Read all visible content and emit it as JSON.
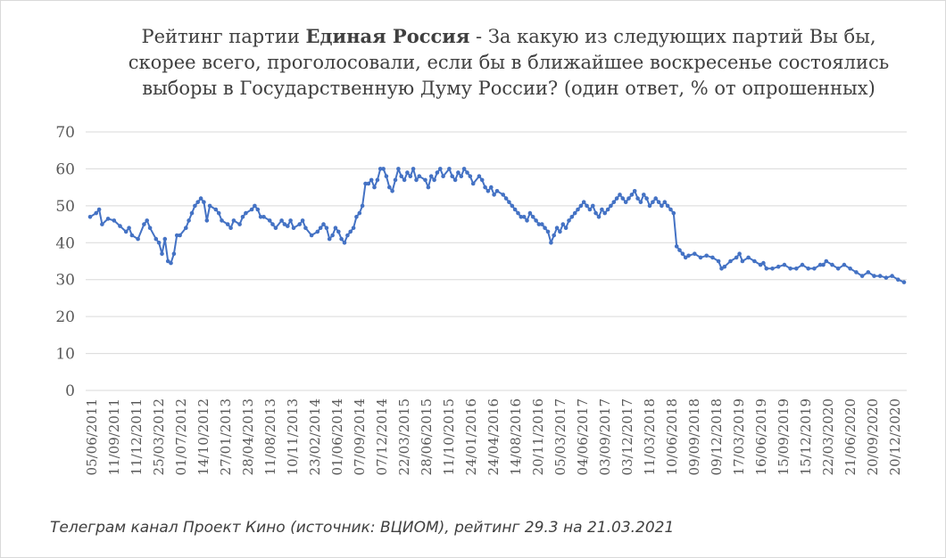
{
  "title": {
    "prefix": "Рейтинг партии ",
    "party": "Единая Россия",
    "suffix": " - За какую из следующих партий Вы бы, скорее всего, проголосовали, если бы в ближайшее воскресенье состоялись выборы в Государственную Думу России? (один ответ, % от опрошенных)"
  },
  "footnote": "Телеграм канал Проект Кино (источник: ВЦИОМ), рейтинг 29.3 на 21.03.2021",
  "colors": {
    "series": "#4472c4",
    "grid": "#d9d9d9",
    "axis_text": "#595959"
  },
  "chart_data": {
    "type": "line",
    "title": "Рейтинг партии Единая Россия - За какую из следующих партий Вы бы, скорее всего, проголосовали, если бы в ближайшее воскресенье состоялись выборы в Государственную Думу России? (один ответ, % от опрошенных)",
    "ylim": [
      0,
      70
    ],
    "yticks": [
      0,
      10,
      20,
      30,
      40,
      50,
      60,
      70
    ],
    "grid": true,
    "legend": "none",
    "x_tick_labels": [
      "05/06/2011",
      "11/09/2011",
      "11/12/2011",
      "25/03/2012",
      "01/07/2012",
      "14/10/2012",
      "27/01/2013",
      "28/04/2013",
      "11/08/2013",
      "10/11/2013",
      "23/02/2014",
      "01/06/2014",
      "07/09/2014",
      "07/12/2014",
      "22/03/2015",
      "28/06/2015",
      "11/10/2015",
      "24/01/2016",
      "24/04/2016",
      "14/08/2016",
      "20/11/2016",
      "05/03/2017",
      "04/06/2017",
      "03/09/2017",
      "03/12/2017",
      "11/03/2018",
      "10/06/2018",
      "09/09/2018",
      "09/12/2018",
      "17/03/2019",
      "16/06/2019",
      "15/09/2019",
      "15/12/2019",
      "22/03/2020",
      "21/06/2020",
      "20/09/2020",
      "20/12/2020"
    ],
    "x_start": "2011-06-05",
    "x_end": "2021-03-21",
    "series": [
      {
        "values": [
          [
            0,
            47
          ],
          [
            2,
            48
          ],
          [
            3,
            49
          ],
          [
            4,
            45
          ],
          [
            6,
            46.5
          ],
          [
            8,
            46
          ],
          [
            10,
            44.5
          ],
          [
            12,
            43
          ],
          [
            13,
            44
          ],
          [
            14,
            42
          ],
          [
            16,
            41
          ],
          [
            18,
            45
          ],
          [
            19,
            46
          ],
          [
            20,
            44
          ],
          [
            22,
            41
          ],
          [
            23,
            40
          ],
          [
            24,
            37
          ],
          [
            25,
            41
          ],
          [
            26,
            35
          ],
          [
            27,
            34.5
          ],
          [
            28,
            37
          ],
          [
            29,
            42
          ],
          [
            30,
            42
          ],
          [
            32,
            44
          ],
          [
            33,
            46
          ],
          [
            34,
            48
          ],
          [
            35,
            50
          ],
          [
            36,
            51
          ],
          [
            37,
            52
          ],
          [
            38,
            51
          ],
          [
            39,
            46
          ],
          [
            40,
            50
          ],
          [
            42,
            49
          ],
          [
            43,
            48
          ],
          [
            44,
            46
          ],
          [
            46,
            45
          ],
          [
            47,
            44
          ],
          [
            48,
            46
          ],
          [
            50,
            45
          ],
          [
            51,
            47
          ],
          [
            52,
            48
          ],
          [
            54,
            49
          ],
          [
            55,
            50
          ],
          [
            56,
            49
          ],
          [
            57,
            47
          ],
          [
            58,
            47
          ],
          [
            60,
            46
          ],
          [
            61,
            45
          ],
          [
            62,
            44
          ],
          [
            64,
            46
          ],
          [
            65,
            45
          ],
          [
            66,
            44.5
          ],
          [
            67,
            46
          ],
          [
            68,
            44
          ],
          [
            70,
            45
          ],
          [
            71,
            46
          ],
          [
            72,
            44
          ],
          [
            74,
            42
          ],
          [
            76,
            43
          ],
          [
            77,
            44
          ],
          [
            78,
            45
          ],
          [
            79,
            44
          ],
          [
            80,
            41
          ],
          [
            81,
            42
          ],
          [
            82,
            44
          ],
          [
            83,
            43
          ],
          [
            84,
            41
          ],
          [
            85,
            40
          ],
          [
            86,
            42
          ],
          [
            87,
            43
          ],
          [
            88,
            44
          ],
          [
            89,
            47
          ],
          [
            90,
            48
          ],
          [
            91,
            50
          ],
          [
            92,
            56
          ],
          [
            93,
            56
          ],
          [
            94,
            57
          ],
          [
            95,
            55
          ],
          [
            96,
            57
          ],
          [
            97,
            60
          ],
          [
            98,
            60
          ],
          [
            99,
            58
          ],
          [
            100,
            55
          ],
          [
            101,
            54
          ],
          [
            102,
            57
          ],
          [
            103,
            60
          ],
          [
            104,
            58
          ],
          [
            105,
            57
          ],
          [
            106,
            59
          ],
          [
            107,
            58
          ],
          [
            108,
            60
          ],
          [
            109,
            57
          ],
          [
            110,
            58
          ],
          [
            112,
            57
          ],
          [
            113,
            55
          ],
          [
            114,
            58
          ],
          [
            115,
            57
          ],
          [
            116,
            59
          ],
          [
            117,
            60
          ],
          [
            118,
            58
          ],
          [
            120,
            60
          ],
          [
            121,
            58
          ],
          [
            122,
            57
          ],
          [
            123,
            59
          ],
          [
            124,
            58
          ],
          [
            125,
            60
          ],
          [
            126,
            59
          ],
          [
            127,
            58
          ],
          [
            128,
            56
          ],
          [
            130,
            58
          ],
          [
            131,
            57
          ],
          [
            132,
            55
          ],
          [
            133,
            54
          ],
          [
            134,
            55
          ],
          [
            135,
            53
          ],
          [
            136,
            54
          ],
          [
            138,
            53
          ],
          [
            139,
            52
          ],
          [
            140,
            51
          ],
          [
            141,
            50
          ],
          [
            142,
            49
          ],
          [
            143,
            48
          ],
          [
            144,
            47
          ],
          [
            145,
            47
          ],
          [
            146,
            46
          ],
          [
            147,
            48
          ],
          [
            148,
            47
          ],
          [
            149,
            46
          ],
          [
            150,
            45
          ],
          [
            151,
            45
          ],
          [
            152,
            44
          ],
          [
            153,
            43
          ],
          [
            154,
            40
          ],
          [
            155,
            42
          ],
          [
            156,
            44
          ],
          [
            157,
            43
          ],
          [
            158,
            45
          ],
          [
            159,
            44
          ],
          [
            160,
            46
          ],
          [
            161,
            47
          ],
          [
            162,
            48
          ],
          [
            163,
            49
          ],
          [
            164,
            50
          ],
          [
            165,
            51
          ],
          [
            166,
            50
          ],
          [
            167,
            49
          ],
          [
            168,
            50
          ],
          [
            169,
            48
          ],
          [
            170,
            47
          ],
          [
            171,
            49
          ],
          [
            172,
            48
          ],
          [
            173,
            49
          ],
          [
            174,
            50
          ],
          [
            175,
            51
          ],
          [
            176,
            52
          ],
          [
            177,
            53
          ],
          [
            178,
            52
          ],
          [
            179,
            51
          ],
          [
            180,
            52
          ],
          [
            181,
            53
          ],
          [
            182,
            54
          ],
          [
            183,
            52
          ],
          [
            184,
            51
          ],
          [
            185,
            53
          ],
          [
            186,
            52
          ],
          [
            187,
            50
          ],
          [
            188,
            51
          ],
          [
            189,
            52
          ],
          [
            190,
            51
          ],
          [
            191,
            50
          ],
          [
            192,
            51
          ],
          [
            193,
            50
          ],
          [
            194,
            49
          ],
          [
            195,
            48
          ],
          [
            196,
            39
          ],
          [
            197,
            38
          ],
          [
            198,
            37
          ],
          [
            199,
            36
          ],
          [
            200,
            36.5
          ],
          [
            202,
            37
          ],
          [
            204,
            36
          ],
          [
            206,
            36.5
          ],
          [
            208,
            36
          ],
          [
            210,
            35
          ],
          [
            211,
            33
          ],
          [
            212,
            33.5
          ],
          [
            214,
            35
          ],
          [
            216,
            36
          ],
          [
            217,
            37
          ],
          [
            218,
            35
          ],
          [
            220,
            36
          ],
          [
            222,
            35
          ],
          [
            224,
            34
          ],
          [
            225,
            34.5
          ],
          [
            226,
            33
          ],
          [
            228,
            33
          ],
          [
            230,
            33.5
          ],
          [
            232,
            34
          ],
          [
            234,
            33
          ],
          [
            236,
            33
          ],
          [
            238,
            34
          ],
          [
            240,
            33
          ],
          [
            242,
            33
          ],
          [
            244,
            34
          ],
          [
            245,
            34
          ],
          [
            246,
            35
          ],
          [
            248,
            34
          ],
          [
            250,
            33
          ],
          [
            252,
            34
          ],
          [
            254,
            33
          ],
          [
            256,
            32
          ],
          [
            258,
            31
          ],
          [
            260,
            32
          ],
          [
            262,
            31
          ],
          [
            264,
            31
          ],
          [
            266,
            30.5
          ],
          [
            268,
            31
          ],
          [
            270,
            30
          ],
          [
            272,
            29.3
          ]
        ],
        "x_units": "week-index (approx.)"
      }
    ]
  }
}
